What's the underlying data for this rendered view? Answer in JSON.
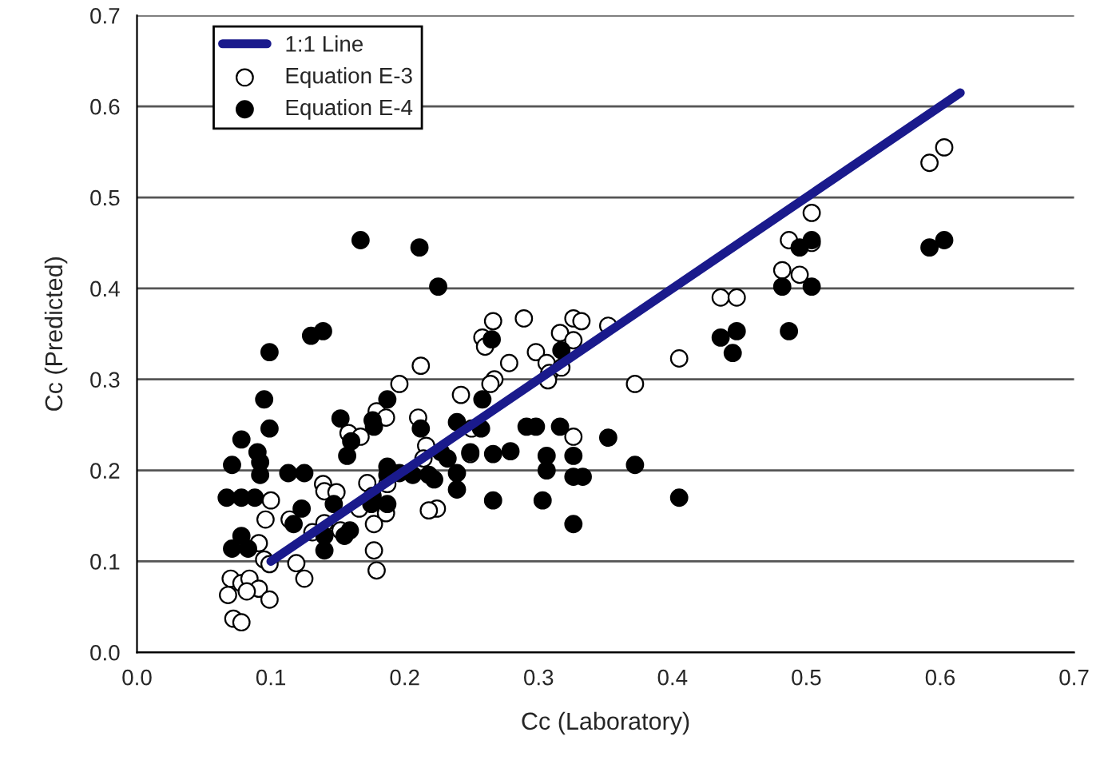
{
  "chart_data": {
    "type": "scatter",
    "xlabel": "Cc (Laboratory)",
    "ylabel": "Cc (Predicted)",
    "xlim": [
      0,
      0.7
    ],
    "ylim": [
      0,
      0.7
    ],
    "xticks": [
      {
        "value": 0,
        "label": "0.0"
      },
      {
        "value": 0.1,
        "label": "0.1"
      },
      {
        "value": 0.2,
        "label": "0.2"
      },
      {
        "value": 0.3,
        "label": "0.3"
      },
      {
        "value": 0.4,
        "label": "0.4"
      },
      {
        "value": 0.5,
        "label": "0.5"
      },
      {
        "value": 0.6,
        "label": "0.6"
      },
      {
        "value": 0.7,
        "label": "0.7"
      }
    ],
    "yticks": [
      {
        "value": 0,
        "label": "0.0"
      },
      {
        "value": 0.1,
        "label": "0.1"
      },
      {
        "value": 0.2,
        "label": "0.2"
      },
      {
        "value": 0.3,
        "label": "0.3"
      },
      {
        "value": 0.4,
        "label": "0.4"
      },
      {
        "value": 0.5,
        "label": "0.5"
      },
      {
        "value": 0.6,
        "label": "0.6"
      },
      {
        "value": 0.7,
        "label": "0.7"
      }
    ],
    "grid": "y",
    "legend": "top left",
    "marker": "circle",
    "series": [
      {
        "name": "1:1 Line",
        "type": "line",
        "marker": "none",
        "color": "#1a1a8c",
        "x": [
          0.1,
          0.615
        ],
        "values": [
          0.1,
          0.615
        ]
      },
      {
        "name": "Equation E-3",
        "color": "#ffffff",
        "x": [
          0.592,
          0.603,
          0.504,
          0.487,
          0.504,
          0.482,
          0.495,
          0.436,
          0.448,
          0.405,
          0.372,
          0.352,
          0.266,
          0.289,
          0.326,
          0.332,
          0.258,
          0.26,
          0.298,
          0.316,
          0.326,
          0.306,
          0.308,
          0.307,
          0.317,
          0.278,
          0.267,
          0.264,
          0.242,
          0.25,
          0.249,
          0.326,
          0.224,
          0.212,
          0.196,
          0.179,
          0.186,
          0.21,
          0.158,
          0.167,
          0.216,
          0.214,
          0.139,
          0.14,
          0.149,
          0.172,
          0.187,
          0.166,
          0.186,
          0.218,
          0.1,
          0.096,
          0.114,
          0.14,
          0.152,
          0.131,
          0.177,
          0.177,
          0.179,
          0.119,
          0.125,
          0.091,
          0.095,
          0.099,
          0.07,
          0.078,
          0.084,
          0.068,
          0.091,
          0.099,
          0.072,
          0.078,
          0.082
        ],
        "values": [
          0.538,
          0.555,
          0.483,
          0.453,
          0.45,
          0.42,
          0.415,
          0.39,
          0.39,
          0.323,
          0.295,
          0.359,
          0.364,
          0.367,
          0.367,
          0.364,
          0.346,
          0.336,
          0.33,
          0.351,
          0.343,
          0.318,
          0.307,
          0.299,
          0.313,
          0.318,
          0.3,
          0.295,
          0.283,
          0.246,
          0.218,
          0.237,
          0.158,
          0.315,
          0.295,
          0.265,
          0.258,
          0.258,
          0.241,
          0.237,
          0.227,
          0.213,
          0.185,
          0.177,
          0.176,
          0.186,
          0.185,
          0.158,
          0.153,
          0.156,
          0.167,
          0.146,
          0.146,
          0.142,
          0.134,
          0.132,
          0.141,
          0.112,
          0.09,
          0.098,
          0.081,
          0.12,
          0.102,
          0.097,
          0.081,
          0.076,
          0.081,
          0.063,
          0.07,
          0.058,
          0.037,
          0.033,
          0.067
        ]
      },
      {
        "name": "Equation E-4",
        "color": "#000000",
        "x": [
          0.167,
          0.211,
          0.225,
          0.13,
          0.139,
          0.099,
          0.095,
          0.099,
          0.078,
          0.09,
          0.092,
          0.071,
          0.092,
          0.067,
          0.078,
          0.088,
          0.113,
          0.125,
          0.078,
          0.071,
          0.083,
          0.123,
          0.117,
          0.14,
          0.147,
          0.16,
          0.157,
          0.152,
          0.176,
          0.187,
          0.176,
          0.187,
          0.196,
          0.206,
          0.222,
          0.239,
          0.227,
          0.257,
          0.249,
          0.239,
          0.266,
          0.266,
          0.279,
          0.291,
          0.298,
          0.316,
          0.306,
          0.306,
          0.303,
          0.326,
          0.326,
          0.333,
          0.326,
          0.352,
          0.372,
          0.405,
          0.258,
          0.265,
          0.317,
          0.239,
          0.592,
          0.603,
          0.495,
          0.504,
          0.482,
          0.504,
          0.487,
          0.436,
          0.448,
          0.445,
          0.14,
          0.155,
          0.159,
          0.175,
          0.177,
          0.187,
          0.187,
          0.212,
          0.218,
          0.232
        ],
        "values": [
          0.453,
          0.445,
          0.402,
          0.348,
          0.353,
          0.33,
          0.278,
          0.246,
          0.234,
          0.22,
          0.209,
          0.206,
          0.195,
          0.17,
          0.17,
          0.17,
          0.197,
          0.197,
          0.128,
          0.114,
          0.114,
          0.158,
          0.141,
          0.128,
          0.163,
          0.232,
          0.216,
          0.257,
          0.255,
          0.195,
          0.172,
          0.163,
          0.197,
          0.195,
          0.19,
          0.197,
          0.22,
          0.246,
          0.22,
          0.179,
          0.218,
          0.167,
          0.221,
          0.248,
          0.248,
          0.248,
          0.216,
          0.2,
          0.167,
          0.193,
          0.216,
          0.193,
          0.141,
          0.236,
          0.206,
          0.17,
          0.278,
          0.344,
          0.332,
          0.253,
          0.445,
          0.453,
          0.445,
          0.453,
          0.402,
          0.402,
          0.353,
          0.346,
          0.353,
          0.329,
          0.112,
          0.128,
          0.134,
          0.163,
          0.248,
          0.278,
          0.204,
          0.246,
          0.195,
          0.213
        ]
      }
    ]
  }
}
